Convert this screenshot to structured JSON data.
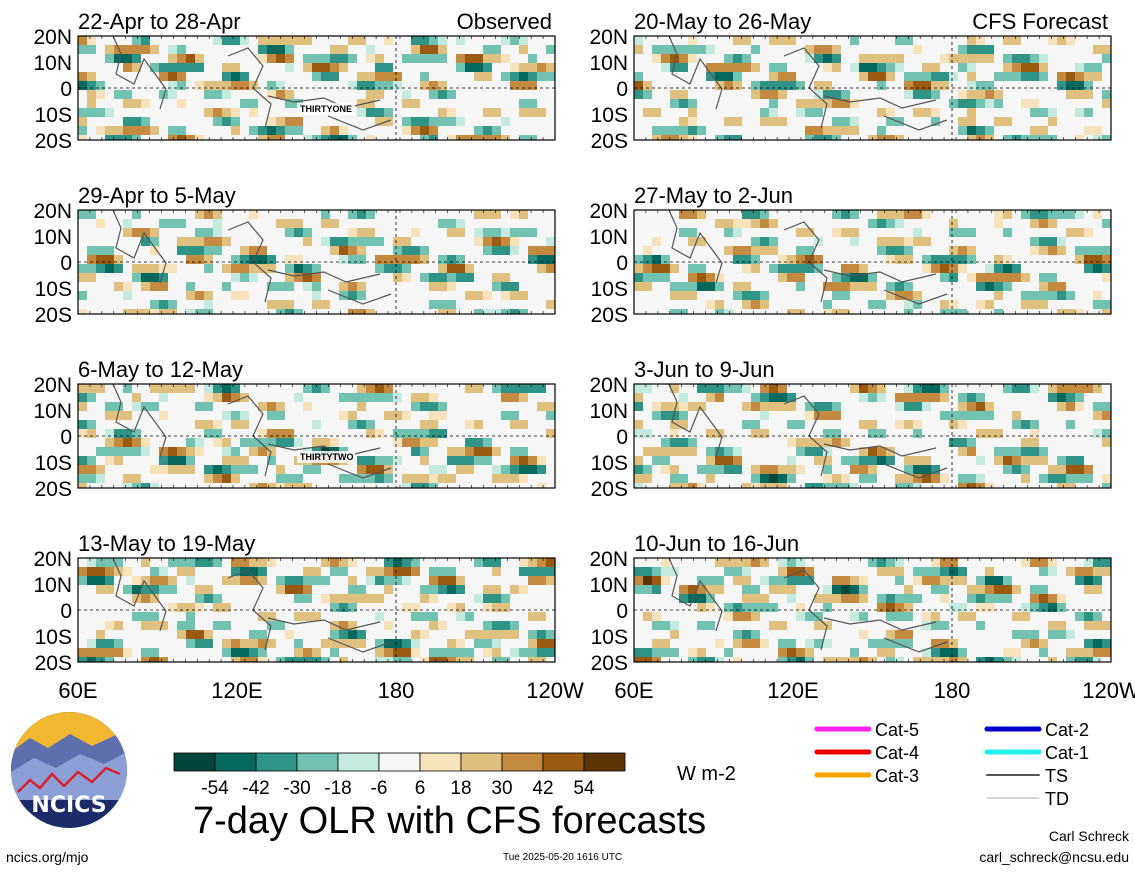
{
  "chart_data": {
    "type": "heatmap",
    "title": "7-day OLR with CFS forecasts",
    "units": "W m-2",
    "colorbar": {
      "ticks": [
        "-54",
        "-42",
        "-30",
        "-18",
        "-6",
        "6",
        "18",
        "30",
        "42",
        "54"
      ],
      "colors": [
        "#00463a",
        "#07695e",
        "#2f9486",
        "#72c2b1",
        "#c4e9df",
        "#f6f6f6",
        "#f6e2bb",
        "#dfc07e",
        "#c48a3f",
        "#9b5a12",
        "#5d3408"
      ]
    },
    "lat_ticks": [
      "20N",
      "10N",
      "0",
      "10S",
      "20S"
    ],
    "lon_ticks": [
      "60E",
      "120E",
      "180",
      "120W"
    ],
    "left_column_label": "Observed",
    "right_column_label": "CFS Forecast",
    "panels": [
      {
        "title": "22-Apr to 28-Apr",
        "column": "observed",
        "storm_label": "THIRTYONE"
      },
      {
        "title": "29-Apr to 5-May",
        "column": "observed",
        "storm_label": ""
      },
      {
        "title": "6-May to 12-May",
        "column": "observed",
        "storm_label": "THIRTYTWO"
      },
      {
        "title": "13-May to 19-May",
        "column": "observed",
        "storm_label": ""
      },
      {
        "title": "20-May to 26-May",
        "column": "forecast",
        "storm_label": ""
      },
      {
        "title": "27-May to 2-Jun",
        "column": "forecast",
        "storm_label": ""
      },
      {
        "title": "3-Jun to 9-Jun",
        "column": "forecast",
        "storm_label": ""
      },
      {
        "title": "10-Jun to 16-Jun",
        "column": "forecast",
        "storm_label": ""
      }
    ],
    "storm_legend": [
      {
        "label": "Cat-5",
        "color": "#ff22ee"
      },
      {
        "label": "Cat-4",
        "color": "#ee0000"
      },
      {
        "label": "Cat-3",
        "color": "#ffa500"
      },
      {
        "label": "Cat-2",
        "color": "#0000cc"
      },
      {
        "label": "Cat-1",
        "color": "#22eeee"
      },
      {
        "label": "TS",
        "color": "#555555"
      },
      {
        "label": "TD",
        "color": "#aaaaaa"
      }
    ]
  },
  "footer": {
    "logo_text": "NCICS",
    "url": "ncics.org/mjo",
    "timestamp": "Tue 2025-05-20 1616 UTC",
    "author": "Carl Schreck",
    "email": "carl_schreck@ncsu.edu"
  }
}
